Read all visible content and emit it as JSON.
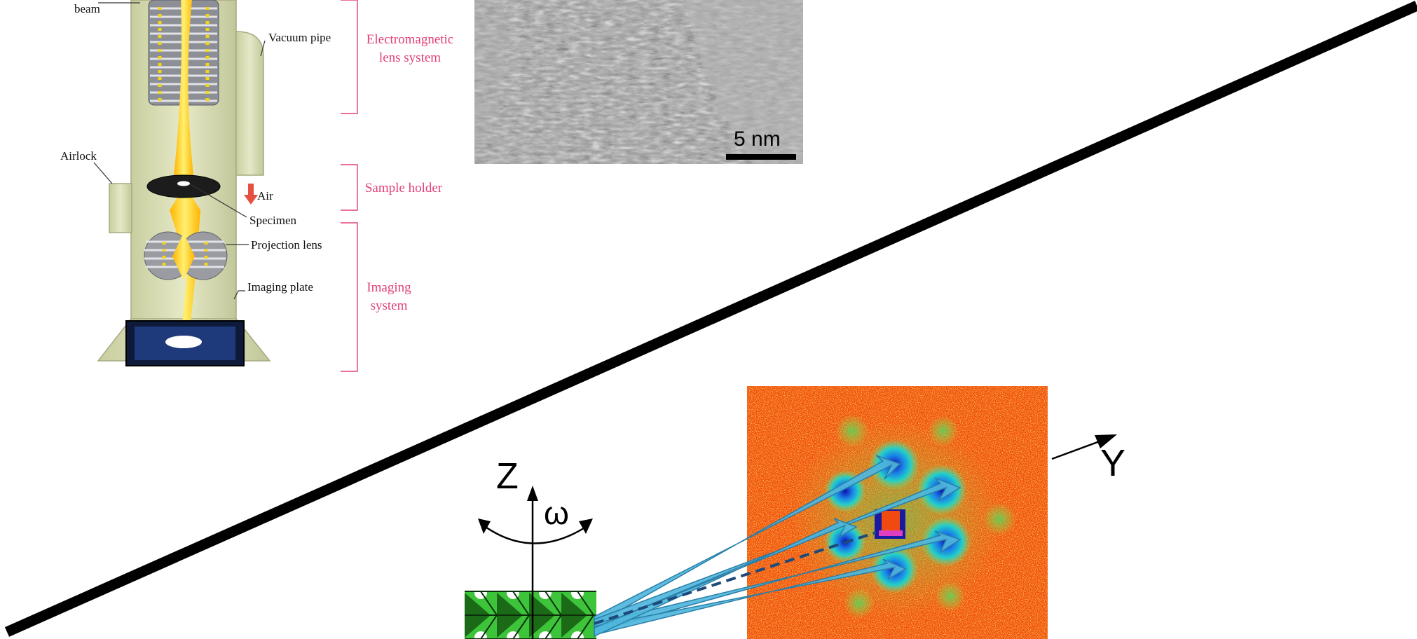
{
  "microscope": {
    "labels": {
      "beam_l1": "beam",
      "vacuum_pipe": "Vacuum pipe",
      "airlock": "Airlock",
      "air": "Air",
      "specimen": "Specimen",
      "projection_lens": "Projection lens",
      "imaging_plate": "Imaging plate"
    },
    "sections": {
      "em_lens_l1": "Electromagnetic",
      "em_lens_l2": "lens system",
      "sample_holder": "Sample holder",
      "imaging_l1": "Imaging",
      "imaging_l2": "system"
    }
  },
  "tem_image": {
    "scale_label": "5 nm"
  },
  "diffraction": {
    "axis_z": "Z",
    "axis_omega": "ω",
    "axis_y": "Y"
  },
  "colors": {
    "pink": "#e2407a",
    "beam_yellow": "#ffd21a",
    "column_khaki": "#d8dcb0",
    "diffraction_bg": "#f04a10",
    "arrow_blue": "#4fb6dc",
    "crystal_green": "#3ec43a",
    "divider": "#000000"
  }
}
